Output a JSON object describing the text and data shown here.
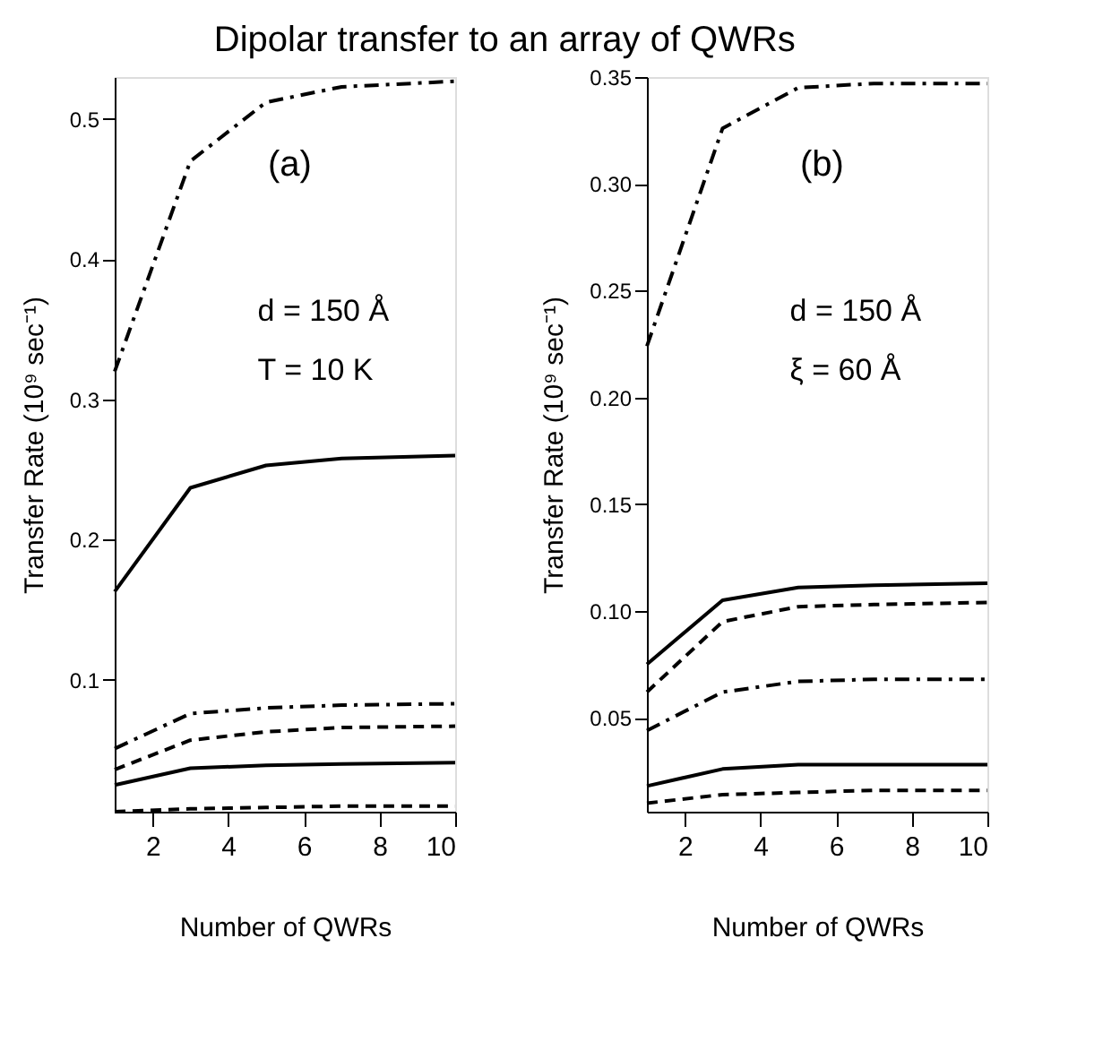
{
  "chart_data": [
    {
      "type": "line",
      "title": "Dipolar transfer to an array of QWRs",
      "xlabel": "Number of QWRs",
      "ylabel": "Transfer Rate (10⁹ sec⁻¹)",
      "x": [
        1,
        3,
        5,
        7,
        10
      ],
      "xlim": [
        1,
        10
      ],
      "xticks": [
        2,
        4,
        6,
        8,
        10
      ],
      "ylim": [
        0.006,
        0.53
      ],
      "yticks": [
        0.1,
        0.2,
        0.3,
        0.4,
        0.5
      ],
      "grid": false,
      "annotations": [
        "(a)",
        "d = 150 Å",
        "T = 10 K"
      ],
      "series": [
        {
          "color": "#000000",
          "line_style": "dashdot",
          "values": [
            0.32,
            0.47,
            0.512,
            0.523,
            0.527
          ]
        },
        {
          "color": "#000000",
          "line_style": "solid",
          "values": [
            0.163,
            0.237,
            0.253,
            0.258,
            0.26
          ]
        },
        {
          "color": "#000000",
          "line_style": "dashdot",
          "values": [
            0.051,
            0.076,
            0.08,
            0.082,
            0.083
          ]
        },
        {
          "color": "#000000",
          "line_style": "dashed",
          "values": [
            0.036,
            0.057,
            0.063,
            0.066,
            0.067
          ]
        },
        {
          "color": "#000000",
          "line_style": "solid",
          "values": [
            0.025,
            0.037,
            0.039,
            0.04,
            0.041
          ]
        },
        {
          "color": "#000000",
          "line_style": "dashed",
          "values": [
            0.006,
            0.008,
            0.009,
            0.01,
            0.01
          ]
        }
      ]
    },
    {
      "type": "line",
      "xlabel": "Number of QWRs",
      "ylabel": "Transfer Rate (10⁹ sec⁻¹)",
      "x": [
        1,
        3,
        5,
        7,
        10
      ],
      "xlim": [
        1,
        10
      ],
      "xticks": [
        2,
        4,
        6,
        8,
        10
      ],
      "ylim": [
        0.006,
        0.35
      ],
      "yticks": [
        0.05,
        {
          "value": 0.1,
          "label": "0.10"
        },
        0.15,
        {
          "value": 0.2,
          "label": "0.20"
        },
        0.25,
        {
          "value": 0.3,
          "label": "0.30"
        },
        0.35
      ],
      "grid": false,
      "annotations": [
        "(b)",
        "d = 150 Å",
        "ξ = 60 Å"
      ],
      "series": [
        {
          "color": "#000000",
          "line_style": "dashdot",
          "values": [
            0.224,
            0.326,
            0.345,
            0.347,
            0.347
          ]
        },
        {
          "color": "#000000",
          "line_style": "solid",
          "values": [
            0.075,
            0.105,
            0.111,
            0.112,
            0.113
          ]
        },
        {
          "color": "#000000",
          "line_style": "dashed",
          "values": [
            0.062,
            0.095,
            0.102,
            0.103,
            0.104
          ]
        },
        {
          "color": "#000000",
          "line_style": "dashdot",
          "values": [
            0.044,
            0.062,
            0.067,
            0.068,
            0.068
          ]
        },
        {
          "color": "#000000",
          "line_style": "solid",
          "values": [
            0.018,
            0.026,
            0.028,
            0.028,
            0.028
          ]
        },
        {
          "color": "#000000",
          "line_style": "dashed",
          "values": [
            0.01,
            0.014,
            0.015,
            0.016,
            0.016
          ]
        }
      ]
    }
  ]
}
